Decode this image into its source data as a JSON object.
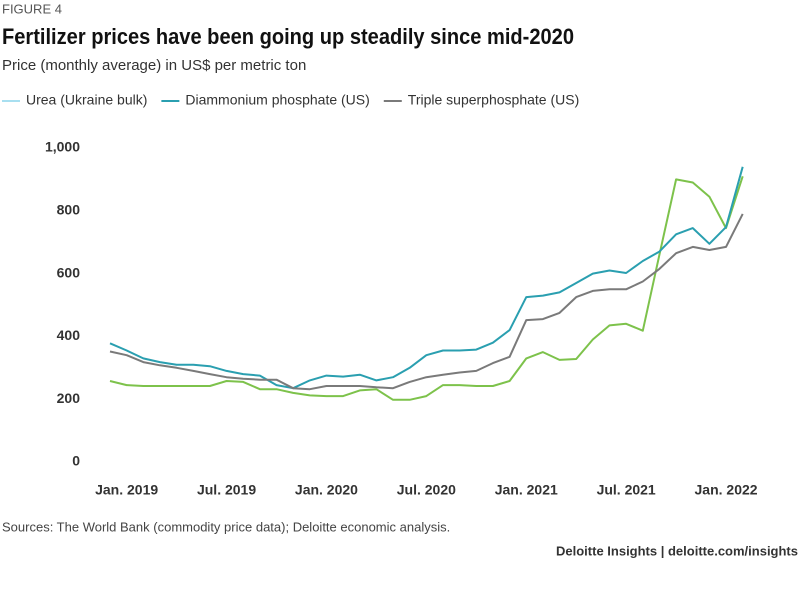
{
  "figure_label": "FIGURE 4",
  "chart_data": {
    "type": "line",
    "title": "Fertilizer prices have been going up steadily since mid-2020",
    "subtitle": "Price (monthly average) in US$ per metric ton",
    "categories": [
      null,
      "Jan. 2019",
      null,
      null,
      null,
      null,
      null,
      "Jul. 2019",
      null,
      null,
      null,
      null,
      null,
      "Jan. 2020",
      null,
      null,
      null,
      null,
      null,
      "Jul. 2020",
      null,
      null,
      null,
      null,
      null,
      "Jan. 2021",
      null,
      null,
      null,
      null,
      null,
      "Jul. 2021",
      null,
      null,
      null,
      null,
      null,
      "Jan. 2022",
      null
    ],
    "series": [
      {
        "name": "Urea (Ukraine bulk)",
        "color": "#7dc24b",
        "legend_color": "#a8dff0",
        "values": [
          258,
          245,
          242,
          242,
          242,
          242,
          242,
          258,
          255,
          232,
          232,
          220,
          212,
          210,
          210,
          228,
          232,
          198,
          198,
          210,
          245,
          245,
          242,
          242,
          258,
          330,
          350,
          325,
          328,
          390,
          435,
          440,
          418,
          660,
          900,
          890,
          845,
          745,
          910
        ]
      },
      {
        "name": "Diammonium phosphate (US)",
        "color": "#2a9fb0",
        "legend_color": "#2a9fb0",
        "values": [
          378,
          355,
          330,
          318,
          310,
          310,
          305,
          290,
          280,
          275,
          245,
          235,
          260,
          275,
          272,
          278,
          260,
          270,
          300,
          340,
          355,
          355,
          358,
          380,
          420,
          525,
          530,
          540,
          570,
          600,
          610,
          602,
          640,
          670,
          725,
          745,
          695,
          748,
          940
        ]
      },
      {
        "name": "Triple superphosphate (US)",
        "color": "#7a7a7a",
        "legend_color": "#7a7a7a",
        "values": [
          352,
          340,
          318,
          308,
          300,
          290,
          280,
          270,
          265,
          262,
          262,
          235,
          232,
          242,
          242,
          242,
          238,
          235,
          255,
          270,
          278,
          285,
          290,
          315,
          335,
          452,
          455,
          475,
          525,
          545,
          550,
          550,
          575,
          615,
          665,
          685,
          675,
          685,
          790
        ]
      }
    ],
    "ylim": [
      0,
      1000
    ],
    "yticks": [
      0,
      200,
      400,
      600,
      800,
      {
        "value": 1000,
        "label": "1,000"
      }
    ],
    "grid": false
  },
  "source": "Sources: The World Bank (commodity price data); Deloitte economic analysis.",
  "footer": "Deloitte Insights | deloitte.com/insights"
}
